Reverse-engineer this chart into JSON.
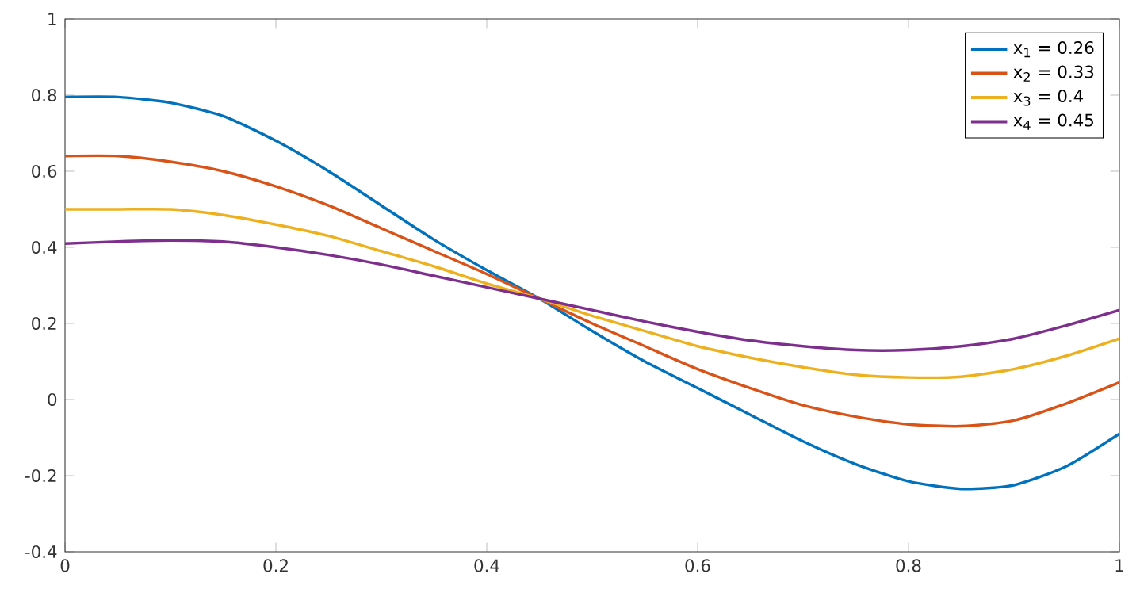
{
  "chart_data": {
    "type": "line",
    "x": [
      0,
      0.05,
      0.1,
      0.15,
      0.2,
      0.25,
      0.3,
      0.35,
      0.4,
      0.45,
      0.5,
      0.55,
      0.6,
      0.65,
      0.7,
      0.75,
      0.8,
      0.85,
      0.9,
      0.95,
      1
    ],
    "series": [
      {
        "name": "x$_{1}$ = 0.26",
        "color": "#0072bd",
        "values": [
          0.795,
          0.795,
          0.78,
          0.745,
          0.68,
          0.6,
          0.51,
          0.42,
          0.34,
          0.265,
          0.18,
          0.1,
          0.03,
          -0.04,
          -0.11,
          -0.17,
          -0.215,
          -0.235,
          -0.225,
          -0.175,
          -0.09
        ]
      },
      {
        "name": "x$_{2}$ = 0.33",
        "color": "#d95319",
        "values": [
          0.64,
          0.64,
          0.625,
          0.6,
          0.56,
          0.51,
          0.45,
          0.39,
          0.33,
          0.265,
          0.2,
          0.14,
          0.08,
          0.03,
          -0.015,
          -0.045,
          -0.065,
          -0.07,
          -0.055,
          -0.01,
          0.045
        ]
      },
      {
        "name": "x$_{3}$ = 0.4",
        "color": "#edb120",
        "values": [
          0.5,
          0.5,
          0.5,
          0.485,
          0.46,
          0.43,
          0.39,
          0.35,
          0.305,
          0.265,
          0.22,
          0.18,
          0.14,
          0.11,
          0.085,
          0.065,
          0.058,
          0.06,
          0.08,
          0.115,
          0.16
        ]
      },
      {
        "name": "x$_{4}$ = 0.45",
        "color": "#7e2f8e",
        "values": [
          0.41,
          0.415,
          0.418,
          0.415,
          0.4,
          0.38,
          0.355,
          0.325,
          0.295,
          0.265,
          0.235,
          0.205,
          0.178,
          0.155,
          0.14,
          0.13,
          0.13,
          0.14,
          0.16,
          0.195,
          0.235
        ]
      }
    ],
    "xlim": [
      0,
      1
    ],
    "ylim": [
      -0.4,
      1
    ],
    "xticks": [
      0,
      0.2,
      0.4,
      0.6,
      0.8,
      1
    ],
    "yticks": [
      -0.4,
      -0.2,
      0,
      0.2,
      0.4,
      0.6,
      0.8,
      1
    ],
    "grid": false,
    "legend": "top right",
    "marker": "none",
    "line_style": "solid"
  }
}
